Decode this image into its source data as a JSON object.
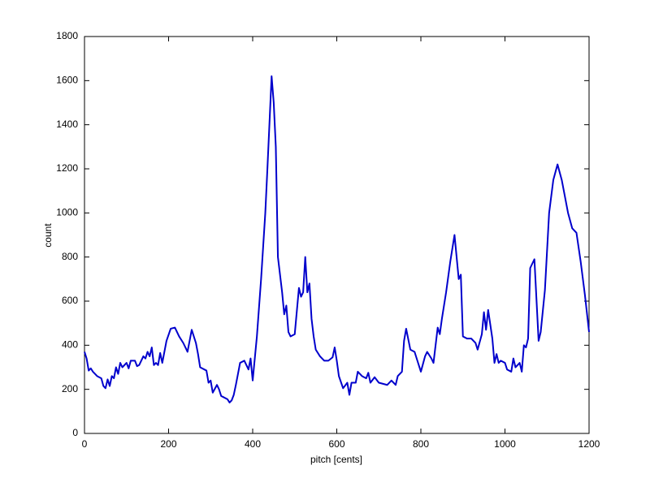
{
  "chart_data": {
    "type": "line",
    "xlabel": "pitch [cents]",
    "ylabel": "count",
    "color": "#0000cc",
    "xlim": [
      0,
      1200
    ],
    "ylim": [
      0,
      1800
    ],
    "xticks": [
      0,
      200,
      400,
      600,
      800,
      1000,
      1200
    ],
    "yticks": [
      0,
      200,
      400,
      600,
      800,
      1000,
      1200,
      1400,
      1600,
      1800
    ],
    "x": [
      0,
      5,
      10,
      15,
      20,
      30,
      40,
      45,
      50,
      55,
      60,
      65,
      70,
      75,
      80,
      85,
      90,
      100,
      105,
      110,
      120,
      125,
      130,
      140,
      145,
      150,
      155,
      160,
      165,
      170,
      175,
      180,
      185,
      195,
      205,
      215,
      225,
      235,
      245,
      255,
      265,
      270,
      275,
      290,
      295,
      300,
      305,
      315,
      320,
      325,
      340,
      345,
      350,
      355,
      360,
      365,
      370,
      380,
      390,
      395,
      400,
      410,
      420,
      430,
      435,
      445,
      450,
      455,
      460,
      470,
      475,
      480,
      485,
      490,
      500,
      510,
      515,
      520,
      525,
      530,
      535,
      540,
      545,
      550,
      560,
      570,
      580,
      590,
      595,
      600,
      605,
      615,
      625,
      630,
      635,
      645,
      650,
      660,
      670,
      675,
      680,
      690,
      700,
      720,
      730,
      740,
      745,
      755,
      760,
      765,
      775,
      785,
      790,
      800,
      810,
      815,
      825,
      830,
      840,
      845,
      850,
      860,
      870,
      880,
      890,
      895,
      900,
      910,
      920,
      930,
      935,
      945,
      950,
      955,
      960,
      970,
      975,
      980,
      985,
      990,
      1000,
      1005,
      1015,
      1020,
      1025,
      1035,
      1040,
      1045,
      1050,
      1055,
      1060,
      1070,
      1080,
      1085,
      1095,
      1105,
      1115,
      1125,
      1135,
      1150,
      1160,
      1170,
      1180,
      1190,
      1200
    ],
    "values": [
      370,
      340,
      285,
      295,
      280,
      260,
      250,
      215,
      205,
      245,
      215,
      260,
      250,
      300,
      270,
      320,
      300,
      320,
      295,
      330,
      330,
      305,
      310,
      350,
      340,
      370,
      350,
      390,
      310,
      320,
      310,
      365,
      320,
      420,
      475,
      480,
      440,
      410,
      370,
      470,
      410,
      360,
      300,
      285,
      230,
      240,
      185,
      220,
      200,
      170,
      155,
      140,
      150,
      175,
      220,
      270,
      320,
      330,
      290,
      340,
      240,
      440,
      700,
      1000,
      1200,
      1620,
      1500,
      1300,
      800,
      640,
      540,
      580,
      460,
      440,
      450,
      660,
      620,
      640,
      800,
      640,
      680,
      520,
      440,
      380,
      350,
      330,
      330,
      345,
      390,
      330,
      260,
      205,
      230,
      175,
      230,
      230,
      280,
      260,
      250,
      275,
      230,
      255,
      230,
      220,
      240,
      220,
      260,
      280,
      420,
      475,
      380,
      370,
      340,
      280,
      350,
      370,
      340,
      320,
      480,
      450,
      520,
      640,
      780,
      900,
      700,
      720,
      440,
      430,
      430,
      410,
      380,
      450,
      550,
      470,
      560,
      430,
      320,
      360,
      320,
      330,
      320,
      290,
      280,
      340,
      300,
      320,
      280,
      400,
      390,
      430,
      750,
      790,
      420,
      460,
      650,
      1000,
      1150,
      1220,
      1150,
      1000,
      930,
      910,
      780,
      630,
      460
    ]
  }
}
